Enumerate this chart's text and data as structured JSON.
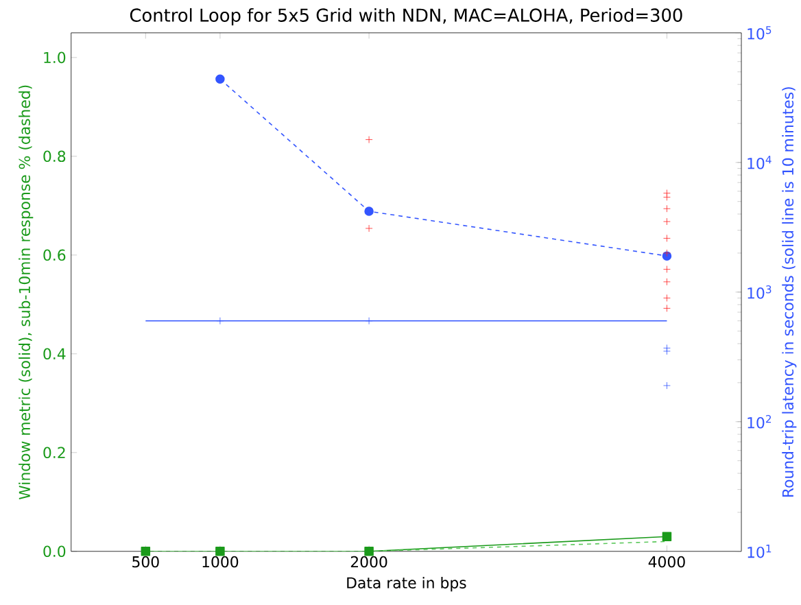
{
  "chart_data": {
    "type": "line",
    "title": "Control Loop for 5x5 Grid with NDN, MAC=ALOHA, Period=300",
    "xlabel": "Data rate in bps",
    "ylabel": "Window metric (solid), sub-10min response % (dashed)",
    "y2label": "Round-trip latency in seconds (solid line is 10 minutes)",
    "xlim": [
      0,
      4500
    ],
    "xticks": [
      500,
      1000,
      2000,
      4000
    ],
    "ylim": [
      0,
      1.05
    ],
    "yticks": [
      {
        "value": 0,
        "label": "0.0"
      },
      {
        "value": 0.2,
        "label": "0.2"
      },
      {
        "value": 0.4,
        "label": "0.4"
      },
      {
        "value": 0.6,
        "label": "0.6"
      },
      {
        "value": 0.8,
        "label": "0.8"
      },
      {
        "value": 1.0,
        "label": "1.0"
      }
    ],
    "log": "y2",
    "y2lim": [
      10,
      100000
    ],
    "y2ticks": [
      {
        "value": 10,
        "label": "10$^{1}$"
      },
      {
        "value": 100,
        "label": "10$^{2}$"
      },
      {
        "value": 1000,
        "label": "10$^{3}$"
      },
      {
        "value": 10000,
        "label": "10$^{4}$"
      },
      {
        "value": 100000,
        "label": "10$^{5}$"
      }
    ],
    "series": [
      {
        "color": "#1a9a1a",
        "marker": "square",
        "line_style": "solid",
        "x": [
          500,
          1000,
          2000,
          4000
        ],
        "values": [
          0,
          0,
          0,
          0.03
        ]
      },
      {
        "color": "#5cc85c",
        "marker": "none",
        "line_style": "dashed",
        "x": [
          500,
          1000,
          2000,
          4000
        ],
        "values": [
          0,
          0,
          0,
          0.02
        ]
      },
      {
        "axis": "y2",
        "color": "#3355ff",
        "marker": "circle",
        "line_style": "dashed",
        "x": [
          1000,
          2000,
          4000
        ],
        "values": [
          44000,
          4200,
          1900
        ]
      },
      {
        "axis": "y2",
        "color": "#3355ff",
        "marker": "none",
        "line_style": "solid",
        "x": [
          500,
          1000,
          2000,
          4000
        ],
        "values": [
          600,
          600,
          600,
          600
        ]
      },
      {
        "type": "scatter",
        "axis": "y2",
        "color": "#ff2222",
        "marker": "cross",
        "x": [
          2000,
          2000,
          4000,
          4000,
          4000,
          4000,
          4000,
          4000,
          4000,
          4000,
          4000,
          4000
        ],
        "values": [
          15000,
          3100,
          5800,
          5400,
          4400,
          3500,
          2600,
          2000,
          1500,
          1200,
          900,
          750
        ]
      },
      {
        "type": "scatter",
        "axis": "y2",
        "color": "#3355ff",
        "marker": "cross",
        "x": [
          1000,
          2000,
          4000,
          4000,
          4000
        ],
        "values": [
          600,
          600,
          370,
          350,
          190
        ]
      }
    ]
  }
}
